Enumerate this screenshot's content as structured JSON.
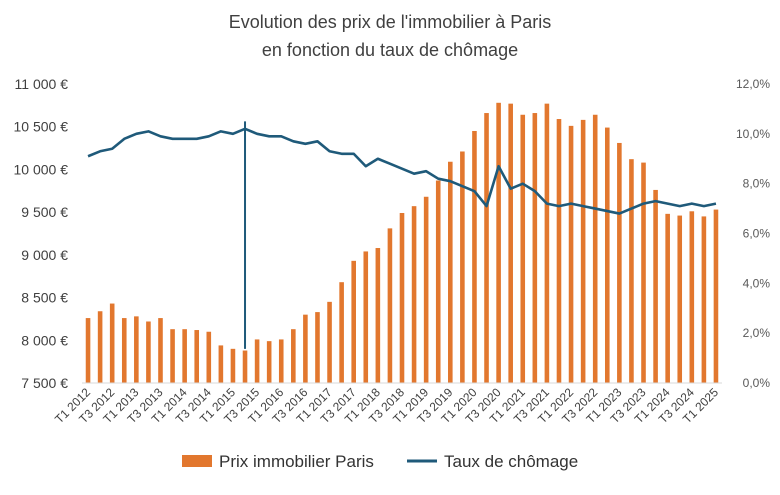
{
  "chart_data": {
    "type": "bar",
    "title_lines": [
      "Evolution des prix de l'immobilier à Paris",
      "en fonction du taux de chômage"
    ],
    "categories": [
      "T1 2012",
      "T2 2012",
      "T3 2012",
      "T4 2012",
      "T1 2013",
      "T2 2013",
      "T3 2013",
      "T4 2013",
      "T1 2014",
      "T2 2014",
      "T3 2014",
      "T4 2014",
      "T1 2015",
      "T2 2015",
      "T3 2015",
      "T4 2015",
      "T1 2016",
      "T2 2016",
      "T3 2016",
      "T4 2016",
      "T1 2017",
      "T2 2017",
      "T3 2017",
      "T4 2017",
      "T1 2018",
      "T2 2018",
      "T3 2018",
      "T4 2018",
      "T1 2019",
      "T2 2019",
      "T3 2019",
      "T4 2019",
      "T1 2020",
      "T2 2020",
      "T3 2020",
      "T4 2020",
      "T1 2021",
      "T2 2021",
      "T3 2021",
      "T4 2021",
      "T1 2022",
      "T2 2022",
      "T3 2022",
      "T4 2022",
      "T1 2023",
      "T2 2023",
      "T3 2023",
      "T4 2023",
      "T1 2024",
      "T2 2024",
      "T3 2024",
      "T4 2024",
      "T1 2025"
    ],
    "tick_labels": [
      "T1 2012",
      "T3 2012",
      "T1 2013",
      "T3 2013",
      "T1 2014",
      "T3 2014",
      "T1 2015",
      "T3 2015",
      "T1 2016",
      "T3 2016",
      "T1 2017",
      "T3 2017",
      "T1 2018",
      "T3 2018",
      "T1 2019",
      "T3 2019",
      "T1 2020",
      "T3 2020",
      "T1 2021",
      "T3 2021",
      "T1 2022",
      "T3 2022",
      "T1 2023",
      "T3 2023",
      "T1 2024",
      "T3 2024",
      "T1 2025"
    ],
    "series": [
      {
        "name": "Prix immobilier Paris",
        "kind": "bar",
        "axis": "left",
        "color": "#E2772E",
        "values": [
          8260,
          8340,
          8430,
          8260,
          8280,
          8220,
          8260,
          8130,
          8130,
          8120,
          8100,
          7940,
          7900,
          7880,
          8010,
          7990,
          8010,
          8130,
          8300,
          8330,
          8450,
          8680,
          8930,
          9040,
          9080,
          9310,
          9490,
          9570,
          9680,
          9870,
          10090,
          10210,
          10450,
          10660,
          10780,
          10770,
          10640,
          10660,
          10770,
          10590,
          10510,
          10580,
          10640,
          10490,
          10310,
          10120,
          10080,
          9760,
          9480,
          9460,
          9510,
          9450,
          9530
        ]
      },
      {
        "name": "Taux de chômage",
        "kind": "line",
        "axis": "right",
        "color": "#1F5A7A",
        "values": [
          9.1,
          9.3,
          9.4,
          9.8,
          10.0,
          10.1,
          9.9,
          9.8,
          9.8,
          9.8,
          9.9,
          10.1,
          10.0,
          10.2,
          10.0,
          9.9,
          9.9,
          9.7,
          9.6,
          9.7,
          9.3,
          9.2,
          9.2,
          8.7,
          9.0,
          8.8,
          8.6,
          8.4,
          8.5,
          8.2,
          8.1,
          7.9,
          7.7,
          7.1,
          8.7,
          7.8,
          8.0,
          7.7,
          7.2,
          7.1,
          7.2,
          7.1,
          7.0,
          6.9,
          6.8,
          7.0,
          7.2,
          7.3,
          7.2,
          7.1,
          7.2,
          7.1,
          7.2
        ]
      }
    ],
    "ylim_left": [
      7500,
      11000
    ],
    "y_ticks_left": [
      "7 500 €",
      "8 000 €",
      "8 500 €",
      "9 000 €",
      "9 500 €",
      "10 000 €",
      "10 500 €",
      "11 000 €"
    ],
    "ylim_right": [
      0,
      12
    ],
    "y_ticks_right": [
      "0,0%",
      "2,0%",
      "4,0%",
      "6,0%",
      "8,0%",
      "10,0%",
      "12,0%"
    ],
    "marker_line_category": "T2 2015",
    "marker_line_color": "#1F5A7A",
    "legend_position": "bottom",
    "grid": false
  }
}
